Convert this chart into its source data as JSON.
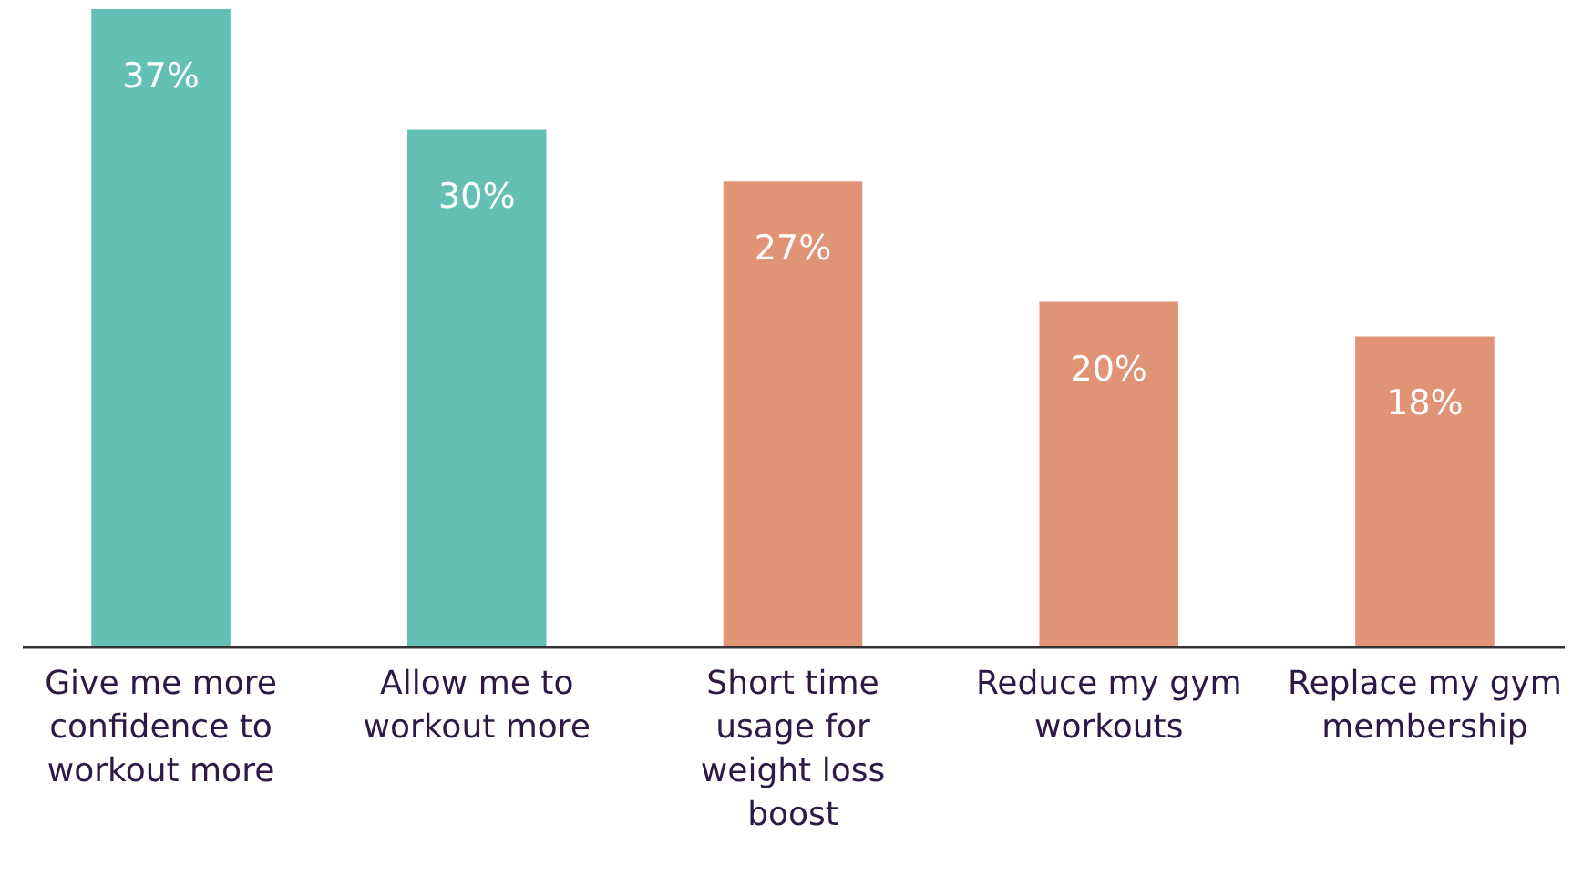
{
  "chart_data": {
    "type": "bar",
    "categories": [
      "Give me more confidence to workout more",
      "Allow me to workout more",
      "Short time usage for weight loss boost",
      "Reduce my gym workouts",
      "Replace my gym membership"
    ],
    "values": [
      37,
      30,
      27,
      20,
      18
    ],
    "colors": [
      "#64c0b5",
      "#64c0b5",
      "#e09375",
      "#e09375",
      "#e09375"
    ],
    "value_labels": [
      "37%",
      "30%",
      "27%",
      "20%",
      "18%"
    ],
    "grid": false
  }
}
